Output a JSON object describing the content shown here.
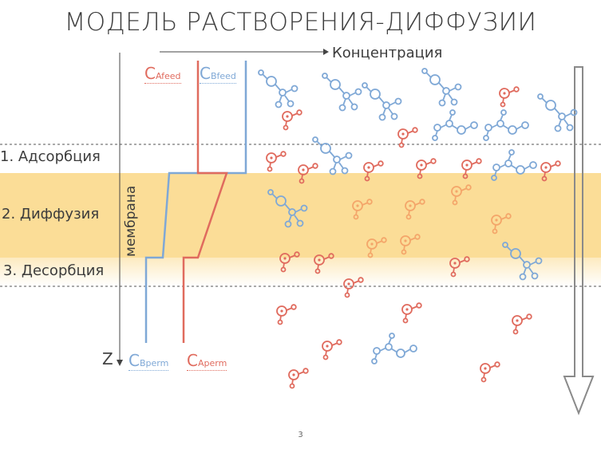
{
  "title": "МОДЕЛЬ РАСТВОРЕНИЯ-ДИФФУЗИИ",
  "axis": {
    "x_label": "Концентрация",
    "z_label": "Z"
  },
  "stages": [
    {
      "label": "1. Адсорбция"
    },
    {
      "label": "2. Диффузия"
    },
    {
      "label": "3. Десорбция"
    }
  ],
  "membrane_label": "мембрана",
  "concentration_labels": {
    "a_feed": {
      "main": "C",
      "sub": "Afeed"
    },
    "b_feed": {
      "main": "C",
      "sub": "Bfeed"
    },
    "b_perm": {
      "main": "C",
      "sub": "Bperm"
    },
    "a_perm": {
      "main": "C",
      "sub": "Aperm"
    }
  },
  "colors": {
    "band": "#fbd98c",
    "red": "#e06b5e",
    "blue": "#7fa8d6",
    "orange": "#f4a66a"
  },
  "page_number": "3"
}
